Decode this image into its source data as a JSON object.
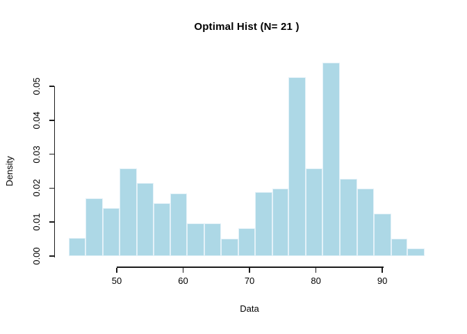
{
  "title": "Optimal Hist (N= 21 )",
  "x_axis": {
    "label": "Data",
    "tick_labels": [
      "50",
      "60",
      "70",
      "80",
      "90"
    ],
    "tick_values": [
      50,
      60,
      70,
      80,
      90
    ]
  },
  "y_axis": {
    "label": "Density",
    "tick_labels": [
      "0.00",
      "0.01",
      "0.02",
      "0.03",
      "0.04",
      "0.05"
    ],
    "tick_values": [
      0,
      0.01,
      0.02,
      0.03,
      0.04,
      0.05
    ]
  },
  "colors": {
    "bar_fill": "#ADD8E6",
    "bar_border": "#E3F1F8",
    "axis": "#1A1A1A",
    "text": "#000000",
    "background": "#FFFFFF"
  },
  "chart_data": {
    "type": "bar",
    "subtype": "histogram",
    "title": "Optimal Hist (N= 21 )",
    "xlabel": "Data",
    "ylabel": "Density",
    "n_bins": 21,
    "bin_edges": [
      42.8,
      45.3,
      47.9,
      50.4,
      53.0,
      55.5,
      58.1,
      60.6,
      63.2,
      65.7,
      68.3,
      70.8,
      73.4,
      75.9,
      78.5,
      81.0,
      83.6,
      86.2,
      88.7,
      91.3,
      93.8,
      96.4
    ],
    "densities": [
      0.0053,
      0.017,
      0.0141,
      0.0258,
      0.0215,
      0.0156,
      0.0184,
      0.0096,
      0.0096,
      0.0051,
      0.0082,
      0.0189,
      0.0199,
      0.0527,
      0.0258,
      0.057,
      0.0227,
      0.0199,
      0.0125,
      0.0051,
      0.0023
    ],
    "xlim": [
      42.8,
      96.4
    ],
    "ylim": [
      0,
      0.0577
    ],
    "x_ticks": [
      50,
      60,
      70,
      80,
      90
    ],
    "y_ticks": [
      0,
      0.01,
      0.02,
      0.03,
      0.04,
      0.05
    ],
    "grid": false,
    "legend": null
  }
}
